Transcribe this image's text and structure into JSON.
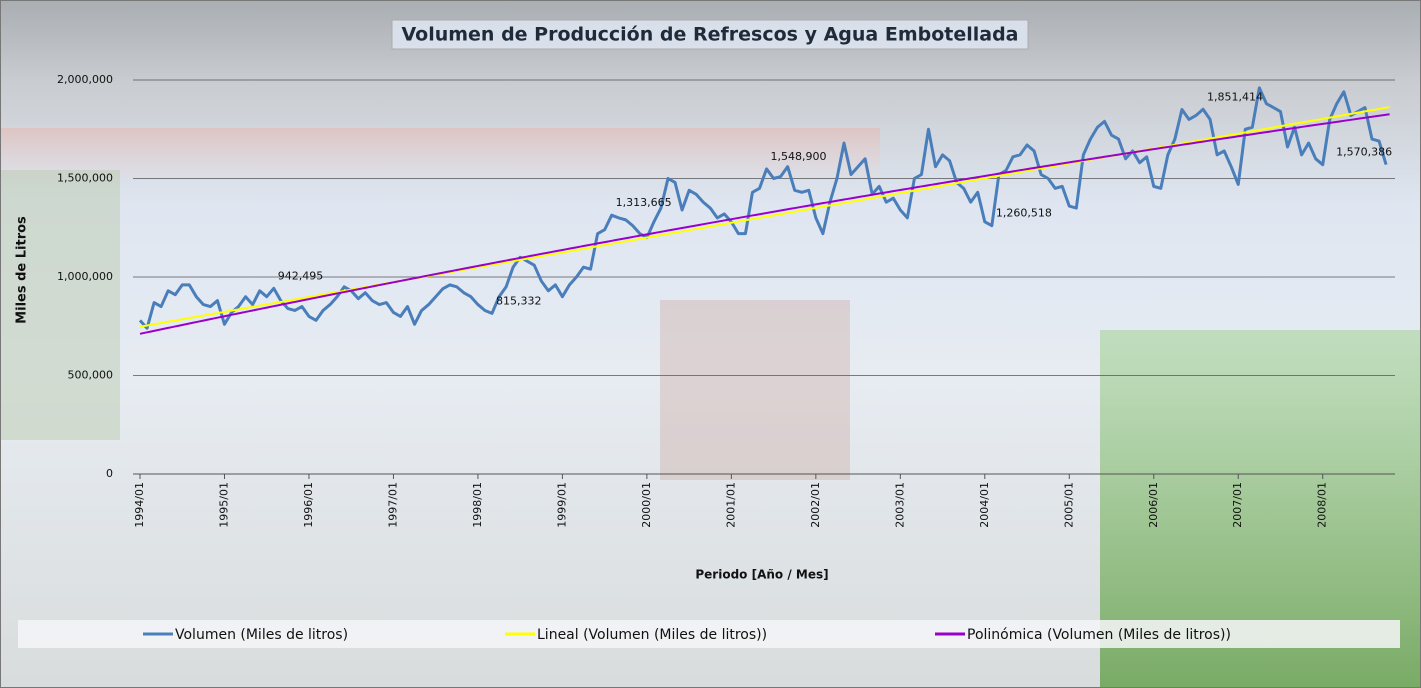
{
  "chart_data": {
    "type": "line",
    "title": "Volumen de Producción de Refrescos y Agua Embotellada",
    "y_label": "Miles de Litros",
    "x_label": "Periodo  [Año / Mes]",
    "categories": [
      "1994/01",
      null,
      null,
      null,
      null,
      null,
      null,
      null,
      null,
      null,
      null,
      null,
      "1995/01",
      null,
      null,
      null,
      null,
      null,
      null,
      null,
      null,
      null,
      null,
      null,
      "1996/01",
      null,
      null,
      null,
      null,
      null,
      null,
      null,
      null,
      null,
      null,
      null,
      "1997/01",
      null,
      null,
      null,
      null,
      null,
      null,
      null,
      null,
      null,
      null,
      null,
      "1998/01",
      null,
      null,
      null,
      null,
      null,
      null,
      null,
      null,
      null,
      null,
      null,
      "1999/01",
      null,
      null,
      null,
      null,
      null,
      null,
      null,
      null,
      null,
      null,
      null,
      "2000/01",
      null,
      null,
      null,
      null,
      null,
      null,
      null,
      null,
      null,
      null,
      null,
      "2001/01",
      null,
      null,
      null,
      null,
      null,
      null,
      null,
      null,
      null,
      null,
      null,
      "2002/01",
      null,
      null,
      null,
      null,
      null,
      null,
      null,
      null,
      null,
      null,
      null,
      "2003/01",
      null,
      null,
      null,
      null,
      null,
      null,
      null,
      null,
      null,
      null,
      null,
      "2004/01",
      null,
      null,
      null,
      null,
      null,
      null,
      null,
      null,
      null,
      null,
      null,
      "2005/01",
      null,
      null,
      null,
      null,
      null,
      null,
      null,
      null,
      null,
      null,
      null,
      "2006/01",
      null,
      null,
      null,
      null,
      null,
      null,
      null,
      null,
      null,
      null,
      null,
      "2007/01",
      null,
      null,
      null,
      null,
      null,
      null,
      null,
      null,
      null,
      null,
      null,
      "2008/01",
      null,
      null,
      null,
      null,
      null,
      null,
      null,
      null,
      null
    ],
    "series": [
      {
        "name": "Volumen (Miles de litros)",
        "color": "#4a7ebb",
        "values": [
          780000,
          740000,
          870000,
          850000,
          930000,
          910000,
          960000,
          960000,
          900000,
          860000,
          850000,
          880000,
          760000,
          820000,
          850000,
          900000,
          860000,
          930000,
          900000,
          942495,
          880000,
          840000,
          830000,
          850000,
          800000,
          780000,
          830000,
          860000,
          900000,
          950000,
          930000,
          890000,
          920000,
          880000,
          860000,
          870000,
          820000,
          800000,
          850000,
          760000,
          830000,
          860000,
          900000,
          940000,
          960000,
          950000,
          920000,
          900000,
          860000,
          830000,
          815332,
          900000,
          950000,
          1050000,
          1100000,
          1080000,
          1060000,
          980000,
          930000,
          960000,
          900000,
          960000,
          1000000,
          1050000,
          1040000,
          1220000,
          1240000,
          1313665,
          1300000,
          1290000,
          1260000,
          1220000,
          1200000,
          1280000,
          1350000,
          1500000,
          1480000,
          1340000,
          1440000,
          1420000,
          1380000,
          1350000,
          1300000,
          1320000,
          1280000,
          1220000,
          1220000,
          1430000,
          1450000,
          1548900,
          1500000,
          1510000,
          1560000,
          1440000,
          1430000,
          1440000,
          1300000,
          1220000,
          1380000,
          1500000,
          1680000,
          1520000,
          1560000,
          1600000,
          1420000,
          1460000,
          1380000,
          1400000,
          1340000,
          1300000,
          1500000,
          1520000,
          1750000,
          1560000,
          1620000,
          1590000,
          1480000,
          1450000,
          1380000,
          1430000,
          1280000,
          1260518,
          1520000,
          1540000,
          1610000,
          1620000,
          1670000,
          1640000,
          1520000,
          1500000,
          1450000,
          1460000,
          1360000,
          1350000,
          1620000,
          1700000,
          1760000,
          1790000,
          1720000,
          1700000,
          1600000,
          1640000,
          1580000,
          1610000,
          1460000,
          1450000,
          1620000,
          1700000,
          1850000,
          1800000,
          1820000,
          1851414,
          1800000,
          1620000,
          1640000,
          1560000,
          1470000,
          1750000,
          1760000,
          1960000,
          1880000,
          1860000,
          1840000,
          1660000,
          1760000,
          1620000,
          1680000,
          1600000,
          1570000,
          1800000,
          1880000,
          1940000,
          1820000,
          1840000,
          1860000,
          1700000,
          1690000,
          1570386
        ],
        "value_labels": [
          null,
          null,
          null,
          null,
          null,
          null,
          null,
          null,
          null,
          null,
          null,
          null,
          null,
          null,
          null,
          null,
          null,
          null,
          null,
          "942,495",
          null,
          null,
          null,
          null,
          null,
          null,
          null,
          null,
          null,
          null,
          null,
          null,
          null,
          null,
          null,
          null,
          null,
          null,
          null,
          null,
          null,
          null,
          null,
          null,
          null,
          null,
          null,
          null,
          null,
          null,
          "815,332",
          null,
          null,
          null,
          null,
          null,
          null,
          null,
          null,
          null,
          null,
          null,
          null,
          null,
          null,
          null,
          null,
          "1,313,665",
          null,
          null,
          null,
          null,
          null,
          null,
          null,
          null,
          null,
          null,
          null,
          null,
          null,
          null,
          null,
          null,
          null,
          null,
          null,
          null,
          null,
          "1,548,900",
          null,
          null,
          null,
          null,
          null,
          null,
          null,
          null,
          null,
          null,
          null,
          null,
          null,
          null,
          null,
          null,
          null,
          null,
          null,
          null,
          null,
          null,
          null,
          null,
          null,
          null,
          null,
          null,
          null,
          null,
          null,
          "1,260,518",
          null,
          null,
          null,
          null,
          null,
          null,
          null,
          null,
          null,
          null,
          null,
          null,
          null,
          null,
          null,
          null,
          null,
          null,
          null,
          null,
          null,
          null,
          null,
          null,
          null,
          null,
          null,
          null,
          null,
          "1,851,414",
          null,
          null,
          null,
          null,
          null,
          null,
          null,
          null,
          null,
          null,
          null,
          null,
          null,
          null,
          null,
          null,
          null,
          null,
          null,
          null,
          null,
          null,
          null,
          null,
          null,
          "1,570,386"
        ]
      }
    ],
    "trendlines": [
      {
        "name": "Lineal (Volumen (Miles de litros))",
        "color": "#ffff00",
        "kind": "linear"
      },
      {
        "name": "Polinómica (Volumen (Miles de litros))",
        "color": "#9900cc",
        "kind": "polynomial",
        "order": 2
      }
    ],
    "ylim": [
      0,
      2000000
    ],
    "yticks": [
      0,
      {
        "value": 500000,
        "label": "500,000"
      },
      {
        "value": 1000000,
        "label": "1,000,000"
      },
      {
        "value": 1500000,
        "label": "1,500,000"
      },
      {
        "value": 2000000,
        "label": "2,000,000"
      }
    ],
    "grid": true,
    "legend": "bottom"
  }
}
